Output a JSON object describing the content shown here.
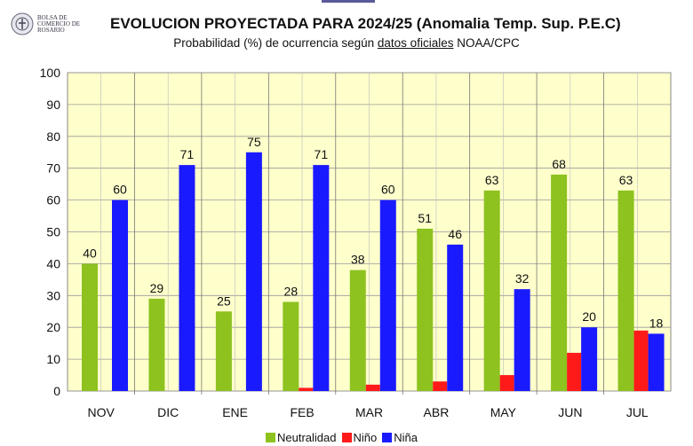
{
  "logo": {
    "text": "BOLSA DE COMERCIO DE ROSARIO"
  },
  "chart_data": {
    "type": "bar",
    "title": "EVOLUCION PROYECTADA PARA 2024/25 (Anomalia Temp. Sup. P.E.C)",
    "subtitle_pre": "Probabilidad (%) de ocurrencia según ",
    "subtitle_link": "datos oficiales",
    "subtitle_post": " NOAA/CPC",
    "categories": [
      "NOV",
      "DIC",
      "ENE",
      "FEB",
      "MAR",
      "ABR",
      "MAY",
      "JUN",
      "JUL"
    ],
    "ylim": [
      0,
      100
    ],
    "yticks": [
      0,
      10,
      20,
      30,
      40,
      50,
      60,
      70,
      80,
      90,
      100
    ],
    "grid": true,
    "legend_position": "bottom",
    "series": [
      {
        "name": "Neutralidad",
        "color": "#8dc21f",
        "values": [
          40,
          29,
          25,
          28,
          38,
          51,
          63,
          68,
          63
        ],
        "labels": true
      },
      {
        "name": "Niño",
        "color": "#ff1a1a",
        "values": [
          0,
          0,
          0,
          1,
          2,
          3,
          5,
          12,
          19
        ],
        "labels": false
      },
      {
        "name": "Niña",
        "color": "#1a1aff",
        "values": [
          60,
          71,
          75,
          71,
          60,
          46,
          32,
          20,
          18
        ],
        "labels": true
      }
    ]
  }
}
